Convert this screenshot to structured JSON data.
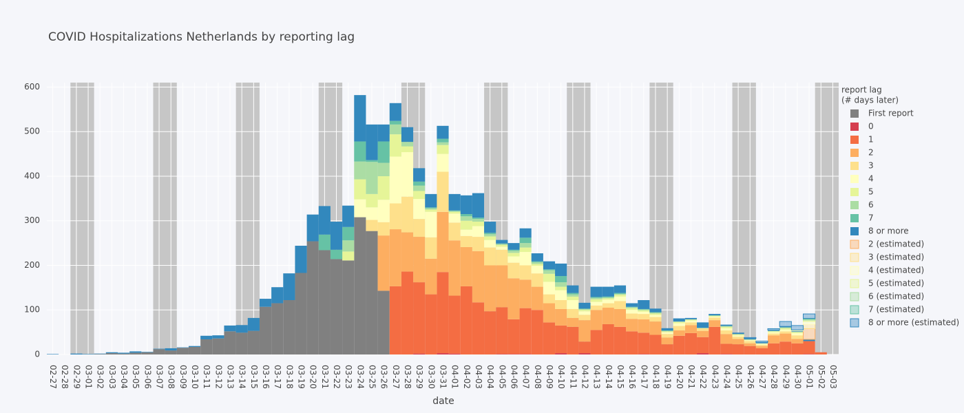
{
  "chart_data": {
    "type": "stacked-bar",
    "title": "COVID Hospitalizations Netherlands by reporting lag",
    "x_label": "date",
    "legend_title": [
      "report lag",
      "(# days later)"
    ],
    "legend_position": "right",
    "grid": true,
    "categories": [
      "02-27",
      "02-28",
      "02-29",
      "03-01",
      "03-02",
      "03-03",
      "03-04",
      "03-05",
      "03-06",
      "03-07",
      "03-08",
      "03-09",
      "03-10",
      "03-11",
      "03-12",
      "03-13",
      "03-14",
      "03-15",
      "03-16",
      "03-17",
      "03-18",
      "03-19",
      "03-20",
      "03-21",
      "03-22",
      "03-23",
      "03-24",
      "03-25",
      "03-26",
      "03-27",
      "03-28",
      "03-29",
      "03-30",
      "03-31",
      "04-01",
      "04-02",
      "04-03",
      "04-04",
      "04-05",
      "04-06",
      "04-07",
      "04-08",
      "04-09",
      "04-10",
      "04-11",
      "04-12",
      "04-13",
      "04-14",
      "04-15",
      "04-16",
      "04-17",
      "04-18",
      "04-19",
      "04-20",
      "04-21",
      "04-22",
      "04-23",
      "04-24",
      "04-25",
      "04-26",
      "04-27",
      "04-28",
      "04-29",
      "04-30",
      "05-01",
      "05-02",
      "05-03"
    ],
    "ylim": [
      0,
      610
    ],
    "yticks": [
      0,
      100,
      200,
      300,
      400,
      500,
      600
    ],
    "series": [
      {
        "name": "First report",
        "color": "#808080",
        "values": [
          0,
          0,
          0,
          0,
          1,
          3,
          2,
          4,
          5,
          12,
          9,
          15,
          17,
          34,
          36,
          52,
          49,
          53,
          107,
          115,
          122,
          183,
          254,
          234,
          214,
          211,
          308,
          277,
          143,
          0,
          0,
          0,
          0,
          0,
          0,
          0,
          0,
          0,
          0,
          0,
          0,
          0,
          0,
          0,
          0,
          0,
          0,
          0,
          0,
          0,
          0,
          0,
          0,
          0,
          0,
          0,
          0,
          0,
          0,
          0,
          0,
          0,
          0,
          0,
          0,
          0,
          0
        ]
      },
      {
        "name": "0",
        "color": "#d53e4f",
        "values": [
          0,
          0,
          0,
          0,
          0,
          0,
          0,
          0,
          0,
          0,
          0,
          0,
          0,
          0,
          0,
          0,
          0,
          0,
          0,
          0,
          0,
          0,
          0,
          0,
          0,
          0,
          0,
          0,
          0,
          0,
          0,
          2,
          0,
          3,
          2,
          0,
          0,
          0,
          1,
          1,
          1,
          0,
          0,
          3,
          0,
          3,
          0,
          0,
          0,
          0,
          1,
          0,
          0,
          0,
          0,
          3,
          0,
          1,
          0,
          0,
          0,
          0,
          0,
          0,
          1,
          0,
          0
        ]
      },
      {
        "name": "1",
        "color": "#f46d43",
        "values": [
          0,
          0,
          0,
          0,
          0,
          0,
          0,
          0,
          0,
          0,
          0,
          0,
          0,
          0,
          0,
          0,
          0,
          0,
          0,
          0,
          0,
          0,
          0,
          0,
          0,
          0,
          0,
          0,
          0,
          153,
          186,
          160,
          135,
          182,
          130,
          153,
          117,
          97,
          105,
          78,
          103,
          100,
          72,
          62,
          62,
          26,
          55,
          68,
          62,
          52,
          48,
          44,
          23,
          42,
          48,
          36,
          62,
          23,
          23,
          19,
          14,
          25,
          29,
          25,
          29,
          5,
          0
        ]
      },
      {
        "name": "2",
        "color": "#fdae61",
        "values": [
          0,
          0,
          0,
          0,
          0,
          0,
          0,
          0,
          0,
          0,
          0,
          0,
          0,
          0,
          0,
          0,
          0,
          0,
          0,
          0,
          0,
          0,
          0,
          0,
          0,
          0,
          0,
          0,
          124,
          128,
          88,
          102,
          80,
          135,
          124,
          88,
          115,
          103,
          94,
          92,
          64,
          52,
          43,
          37,
          20,
          48,
          45,
          37,
          40,
          28,
          30,
          30,
          15,
          12,
          18,
          14,
          15,
          22,
          12,
          6,
          5,
          18,
          18,
          10,
          0,
          0,
          0
        ]
      },
      {
        "name": "3",
        "color": "#fee08b",
        "values": [
          0,
          0,
          0,
          0,
          0,
          0,
          0,
          0,
          0,
          0,
          0,
          0,
          0,
          0,
          0,
          0,
          0,
          0,
          0,
          0,
          0,
          0,
          0,
          0,
          0,
          0,
          0,
          25,
          30,
          58,
          80,
          40,
          48,
          90,
          40,
          25,
          32,
          40,
          35,
          35,
          32,
          30,
          20,
          20,
          20,
          12,
          10,
          10,
          18,
          12,
          12,
          10,
          8,
          10,
          6,
          6,
          6,
          8,
          5,
          5,
          3,
          4,
          5,
          8,
          0,
          0,
          0
        ]
      },
      {
        "name": "4",
        "color": "#ffffbf",
        "values": [
          0,
          0,
          0,
          0,
          0,
          0,
          0,
          0,
          0,
          0,
          0,
          0,
          0,
          0,
          0,
          0,
          0,
          0,
          0,
          0,
          0,
          0,
          0,
          0,
          0,
          0,
          40,
          28,
          50,
          105,
          100,
          45,
          57,
          40,
          20,
          14,
          24,
          17,
          7,
          14,
          30,
          17,
          28,
          22,
          20,
          8,
          8,
          8,
          10,
          8,
          5,
          5,
          4,
          6,
          4,
          0,
          2,
          5,
          3,
          2,
          2,
          3,
          4,
          5,
          0,
          0,
          0
        ]
      },
      {
        "name": "5",
        "color": "#e6f598",
        "values": [
          0,
          0,
          0,
          0,
          0,
          0,
          0,
          0,
          0,
          0,
          0,
          0,
          0,
          0,
          0,
          0,
          0,
          0,
          0,
          0,
          0,
          0,
          0,
          0,
          0,
          20,
          45,
          30,
          53,
          50,
          13,
          18,
          5,
          20,
          4,
          20,
          10,
          8,
          4,
          8,
          10,
          4,
          18,
          8,
          8,
          3,
          6,
          3,
          4,
          4,
          3,
          3,
          2,
          3,
          2,
          0,
          2,
          3,
          2,
          1,
          1,
          2,
          3,
          2,
          0,
          0,
          0
        ]
      },
      {
        "name": "6",
        "color": "#abdda4",
        "values": [
          0,
          0,
          0,
          0,
          0,
          0,
          0,
          0,
          0,
          0,
          0,
          0,
          0,
          0,
          0,
          0,
          0,
          0,
          0,
          0,
          0,
          0,
          0,
          0,
          0,
          25,
          40,
          72,
          30,
          22,
          10,
          12,
          3,
          6,
          2,
          10,
          6,
          5,
          2,
          5,
          10,
          4,
          8,
          10,
          5,
          2,
          3,
          2,
          2,
          2,
          2,
          2,
          1,
          1,
          1,
          0,
          0,
          2,
          1,
          1,
          0,
          1,
          2,
          1,
          0,
          0,
          0
        ]
      },
      {
        "name": "7",
        "color": "#66c2a5",
        "values": [
          0,
          0,
          0,
          0,
          0,
          0,
          0,
          0,
          0,
          0,
          0,
          0,
          0,
          0,
          0,
          0,
          0,
          0,
          0,
          0,
          0,
          0,
          0,
          35,
          21,
          30,
          45,
          4,
          48,
          8,
          0,
          9,
          2,
          8,
          1,
          5,
          3,
          3,
          1,
          2,
          12,
          2,
          2,
          14,
          3,
          1,
          2,
          2,
          2,
          1,
          1,
          1,
          1,
          0,
          0,
          1,
          1,
          0,
          0,
          0,
          0,
          0,
          0,
          0,
          0,
          0,
          0
        ]
      },
      {
        "name": "8 or more",
        "color": "#3288bd",
        "values": [
          1,
          0,
          2,
          1,
          1,
          2,
          2,
          3,
          1,
          1,
          5,
          1,
          2,
          8,
          7,
          13,
          17,
          29,
          18,
          36,
          60,
          61,
          60,
          64,
          63,
          48,
          104,
          80,
          38,
          40,
          33,
          30,
          30,
          29,
          37,
          42,
          55,
          25,
          8,
          15,
          21,
          18,
          18,
          28,
          17,
          13,
          23,
          22,
          17,
          8,
          20,
          8,
          5,
          7,
          3,
          12,
          3,
          3,
          3,
          2,
          2,
          2,
          2,
          2,
          4,
          0,
          0
        ]
      },
      {
        "name": "2 (estimated)",
        "color": "#fdae61",
        "opacity": 0.4,
        "values": [
          0,
          0,
          0,
          0,
          0,
          0,
          0,
          0,
          0,
          0,
          0,
          0,
          0,
          0,
          0,
          0,
          0,
          0,
          0,
          0,
          0,
          0,
          0,
          0,
          0,
          0,
          0,
          0,
          0,
          0,
          0,
          0,
          0,
          0,
          0,
          0,
          0,
          0,
          0,
          0,
          0,
          0,
          0,
          0,
          0,
          0,
          0,
          0,
          0,
          0,
          0,
          0,
          0,
          0,
          0,
          0,
          0,
          0,
          0,
          0,
          0,
          0,
          0,
          0,
          24,
          0,
          0
        ]
      },
      {
        "name": "3 (estimated)",
        "color": "#fee08b",
        "opacity": 0.4,
        "values": [
          0,
          0,
          0,
          0,
          0,
          0,
          0,
          0,
          0,
          0,
          0,
          0,
          0,
          0,
          0,
          0,
          0,
          0,
          0,
          0,
          0,
          0,
          0,
          0,
          0,
          0,
          0,
          0,
          0,
          0,
          0,
          0,
          0,
          0,
          0,
          0,
          0,
          0,
          0,
          0,
          0,
          0,
          0,
          0,
          0,
          0,
          0,
          0,
          0,
          0,
          0,
          0,
          0,
          0,
          0,
          0,
          0,
          0,
          0,
          0,
          0,
          0,
          0,
          0,
          10,
          0,
          0
        ]
      },
      {
        "name": "4 (estimated)",
        "color": "#ffffbf",
        "opacity": 0.4,
        "values": [
          0,
          0,
          0,
          0,
          0,
          0,
          0,
          0,
          0,
          0,
          0,
          0,
          0,
          0,
          0,
          0,
          0,
          0,
          0,
          0,
          0,
          0,
          0,
          0,
          0,
          0,
          0,
          0,
          0,
          0,
          0,
          0,
          0,
          0,
          0,
          0,
          0,
          0,
          0,
          0,
          0,
          0,
          0,
          0,
          0,
          0,
          0,
          0,
          0,
          0,
          0,
          0,
          0,
          0,
          0,
          0,
          0,
          0,
          0,
          0,
          0,
          0,
          0,
          2,
          6,
          0,
          0
        ]
      },
      {
        "name": "5 (estimated)",
        "color": "#e6f598",
        "opacity": 0.4,
        "values": [
          0,
          0,
          0,
          0,
          0,
          0,
          0,
          0,
          0,
          0,
          0,
          0,
          0,
          0,
          0,
          0,
          0,
          0,
          0,
          0,
          0,
          0,
          0,
          0,
          0,
          0,
          0,
          0,
          0,
          0,
          0,
          0,
          0,
          0,
          0,
          0,
          0,
          0,
          0,
          0,
          0,
          0,
          0,
          0,
          0,
          0,
          0,
          0,
          0,
          0,
          0,
          0,
          0,
          0,
          0,
          0,
          0,
          0,
          0,
          0,
          0,
          0,
          0,
          0,
          3,
          0,
          0
        ]
      },
      {
        "name": "6 (estimated)",
        "color": "#abdda4",
        "opacity": 0.4,
        "values": [
          0,
          0,
          0,
          0,
          0,
          0,
          0,
          0,
          0,
          0,
          0,
          0,
          0,
          0,
          0,
          0,
          0,
          0,
          0,
          0,
          0,
          0,
          0,
          0,
          0,
          0,
          0,
          0,
          0,
          0,
          0,
          0,
          0,
          0,
          0,
          0,
          0,
          0,
          0,
          0,
          0,
          0,
          0,
          0,
          0,
          0,
          0,
          0,
          0,
          0,
          0,
          0,
          0,
          0,
          0,
          0,
          0,
          0,
          0,
          0,
          0,
          0,
          0,
          0,
          2,
          0,
          0
        ]
      },
      {
        "name": "7 (estimated)",
        "color": "#66c2a5",
        "opacity": 0.4,
        "values": [
          0,
          0,
          0,
          0,
          0,
          0,
          0,
          0,
          0,
          0,
          0,
          0,
          0,
          0,
          0,
          0,
          0,
          0,
          0,
          0,
          0,
          0,
          0,
          0,
          0,
          0,
          0,
          0,
          0,
          0,
          0,
          0,
          0,
          0,
          0,
          0,
          0,
          0,
          0,
          0,
          0,
          0,
          0,
          0,
          0,
          0,
          0,
          0,
          0,
          0,
          0,
          0,
          0,
          0,
          0,
          0,
          0,
          0,
          0,
          0,
          0,
          0,
          0,
          0,
          2,
          0,
          0
        ]
      },
      {
        "name": "8 or more (estimated)",
        "color": "#3288bd",
        "opacity": 0.4,
        "values": [
          0,
          0,
          0,
          0,
          0,
          0,
          0,
          0,
          0,
          0,
          0,
          0,
          0,
          0,
          0,
          0,
          0,
          0,
          0,
          0,
          0,
          0,
          0,
          0,
          0,
          0,
          0,
          0,
          0,
          0,
          0,
          0,
          0,
          0,
          0,
          0,
          0,
          0,
          0,
          0,
          0,
          0,
          0,
          0,
          0,
          0,
          0,
          0,
          0,
          0,
          0,
          0,
          0,
          0,
          0,
          0,
          0,
          0,
          0,
          2,
          3,
          3,
          11,
          10,
          10,
          0,
          0
        ]
      }
    ]
  }
}
